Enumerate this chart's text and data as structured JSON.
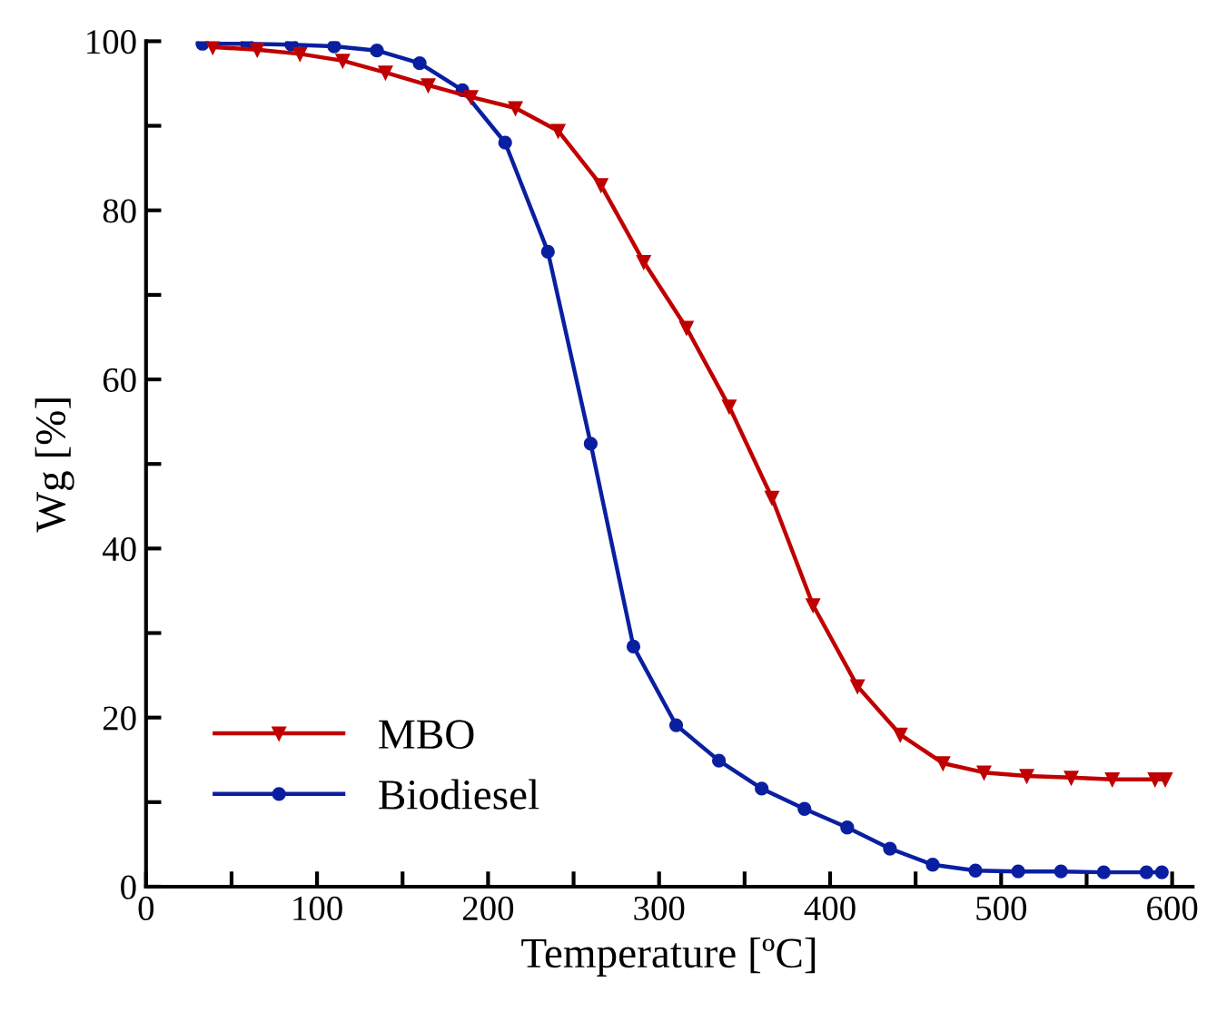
{
  "chart_data": {
    "type": "line",
    "xlabel": "Temperature [ºC]",
    "ylabel": "Wg [%]",
    "xlim": [
      0,
      612
    ],
    "ylim": [
      0,
      100
    ],
    "xticks": [
      0,
      {
        "value": 50,
        "label": null
      },
      100,
      {
        "value": 150,
        "label": null
      },
      200,
      {
        "value": 250,
        "label": null
      },
      300,
      {
        "value": 350,
        "label": null
      },
      400,
      {
        "value": 450,
        "label": null
      },
      500,
      {
        "value": 550,
        "label": null
      },
      600
    ],
    "yticks": [
      0,
      {
        "value": 10,
        "label": null
      },
      20,
      {
        "value": 30,
        "label": null
      },
      40,
      {
        "value": 50,
        "label": null
      },
      60,
      {
        "value": 70,
        "label": null
      },
      80,
      {
        "value": 90,
        "label": null
      },
      100
    ],
    "grid": false,
    "legend": "bottom left",
    "line_style": "solid",
    "series": [
      {
        "name": "MBO",
        "color": "#c00000",
        "marker": "triangle",
        "x": [
          39,
          65,
          90,
          115,
          140,
          165,
          190,
          216,
          241,
          266,
          291,
          316,
          341,
          366,
          390,
          416,
          441,
          466,
          490,
          515,
          541,
          565,
          590,
          596
        ],
        "values": [
          99.3,
          99.0,
          98.5,
          97.7,
          96.3,
          94.8,
          93.4,
          92.1,
          89.4,
          83.0,
          73.9,
          66.1,
          56.8,
          46.0,
          33.3,
          23.7,
          18.0,
          14.6,
          13.5,
          13.1,
          12.9,
          12.7,
          12.7,
          12.7
        ]
      },
      {
        "name": "Biodiesel",
        "color": "#0a1fa0",
        "marker": "circle",
        "x": [
          33,
          59,
          85,
          110,
          135,
          160,
          185,
          210,
          235,
          260,
          285,
          310,
          335,
          360,
          385,
          410,
          435,
          460,
          485,
          510,
          535,
          560,
          585,
          594
        ],
        "values": [
          99.7,
          99.7,
          99.6,
          99.4,
          98.9,
          97.4,
          94.2,
          88.0,
          75.1,
          52.4,
          28.4,
          19.1,
          14.9,
          11.6,
          9.2,
          7.0,
          4.5,
          2.6,
          1.9,
          1.8,
          1.8,
          1.7,
          1.7,
          1.7
        ]
      }
    ]
  }
}
